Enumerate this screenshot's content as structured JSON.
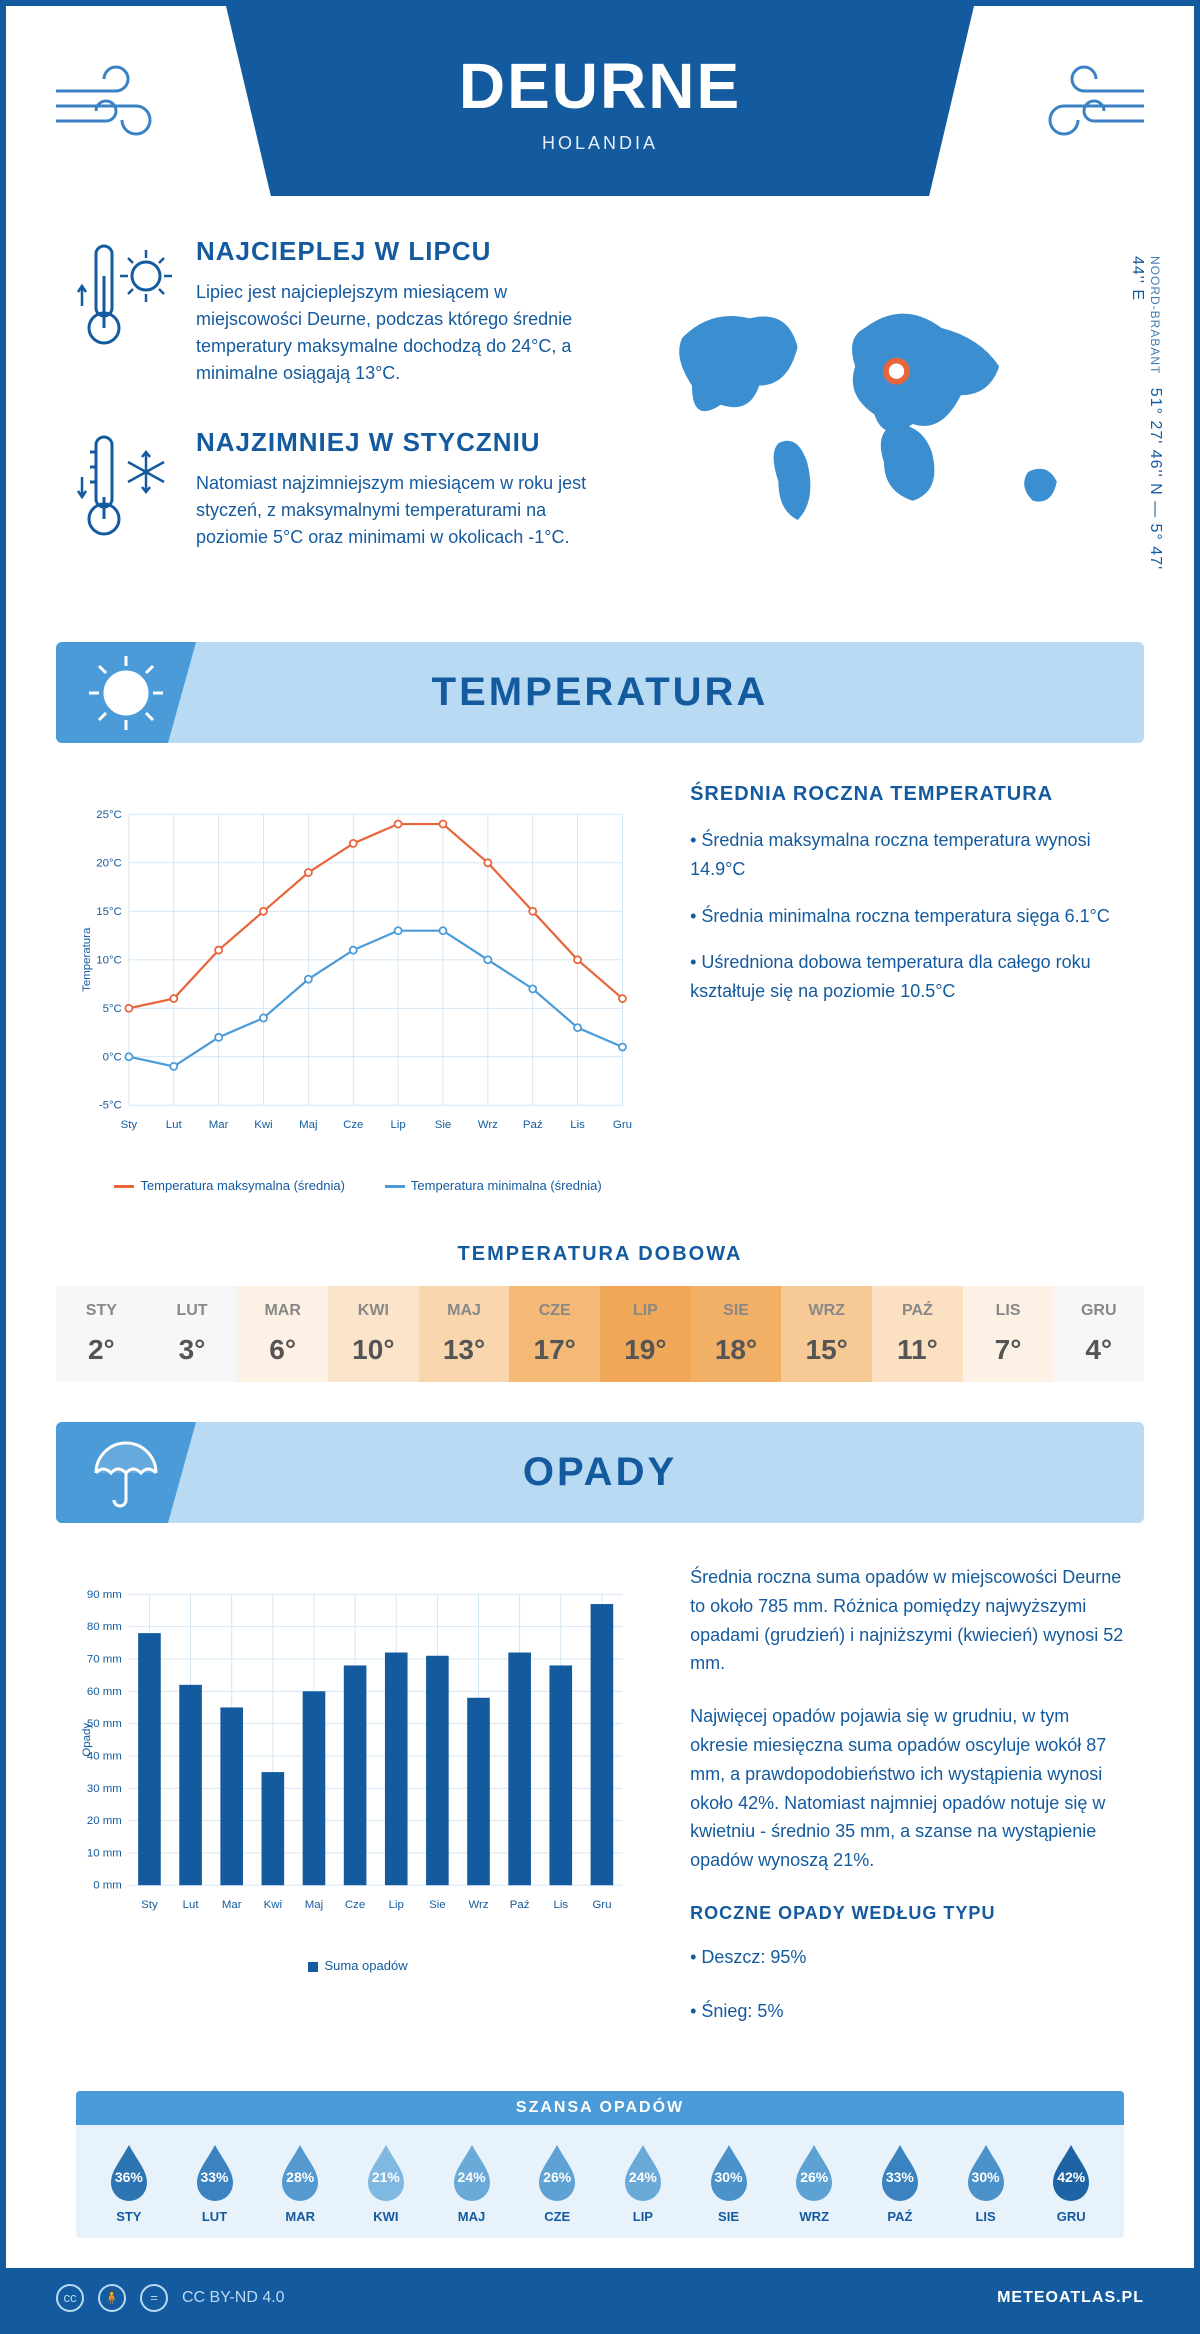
{
  "header": {
    "city": "DEURNE",
    "country": "HOLANDIA"
  },
  "coords": {
    "region": "NOORD-BRABANT",
    "value": "51° 27' 46'' N — 5° 47' 44'' E"
  },
  "intro": {
    "warm": {
      "title": "NAJCIEPLEJ W LIPCU",
      "text": "Lipiec jest najcieplejszym miesiącem w miejscowości Deurne, podczas którego średnie temperatury maksymalne dochodzą do 24°C, a minimalne osiągają 13°C."
    },
    "cold": {
      "title": "NAJZIMNIEJ W STYCZNIU",
      "text": "Natomiast najzimniejszym miesiącem w roku jest styczeń, z maksymalnymi temperaturami na poziomie 5°C oraz minimami w okolicach -1°C."
    }
  },
  "temperature": {
    "banner": "TEMPERATURA",
    "summary_title": "ŚREDNIA ROCZNA TEMPERATURA",
    "summary": [
      "• Średnia maksymalna roczna temperatura wynosi 14.9°C",
      "• Średnia minimalna roczna temperatura sięga 6.1°C",
      "• Uśredniona dobowa temperatura dla całego roku kształtuje się na poziomie 10.5°C"
    ],
    "chart": {
      "type": "line",
      "months": [
        "Sty",
        "Lut",
        "Mar",
        "Kwi",
        "Maj",
        "Cze",
        "Lip",
        "Sie",
        "Wrz",
        "Paź",
        "Lis",
        "Gru"
      ],
      "series": [
        {
          "name": "Temperatura maksymalna (średnia)",
          "color": "#e8653b",
          "values": [
            5,
            6,
            11,
            15,
            19,
            22,
            24,
            24,
            20,
            15,
            10,
            6
          ]
        },
        {
          "name": "Temperatura minimalna (średnia)",
          "color": "#4a9bd8",
          "values": [
            0,
            -1,
            2,
            4,
            8,
            11,
            13,
            13,
            10,
            7,
            3,
            1
          ]
        }
      ],
      "ylabel": "Temperatura",
      "ymin": -5,
      "ymax": 25,
      "ystep": 5,
      "grid_color": "#cfe4f3",
      "background_color": "#ffffff"
    },
    "daily": {
      "title": "TEMPERATURA DOBOWA",
      "months": [
        "STY",
        "LUT",
        "MAR",
        "KWI",
        "MAJ",
        "CZE",
        "LIP",
        "SIE",
        "WRZ",
        "PAŹ",
        "LIS",
        "GRU"
      ],
      "values": [
        "2°",
        "3°",
        "6°",
        "10°",
        "13°",
        "17°",
        "19°",
        "18°",
        "15°",
        "11°",
        "7°",
        "4°"
      ],
      "colors": [
        "#f7f7f7",
        "#f7f7f7",
        "#fdf1e5",
        "#fce4ca",
        "#f9d6ae",
        "#f4b877",
        "#f0a858",
        "#f2af66",
        "#f7ca95",
        "#fbe0c2",
        "#fdf1e5",
        "#f7f7f7"
      ]
    }
  },
  "precip": {
    "banner": "OPADY",
    "text": [
      "Średnia roczna suma opadów w miejscowości Deurne to około 785 mm. Różnica pomiędzy najwyższymi opadami (grudzień) i najniższymi (kwiecień) wynosi 52 mm.",
      "Najwięcej opadów pojawia się w grudniu, w tym okresie miesięczna suma opadów oscyluje wokół 87 mm, a prawdopodobieństwo ich wystąpienia wynosi około 42%. Natomiast najmniej opadów notuje się w kwietniu - średnio 35 mm, a szanse na wystąpienie opadów wynoszą 21%."
    ],
    "chart": {
      "type": "bar",
      "months": [
        "Sty",
        "Lut",
        "Mar",
        "Kwi",
        "Maj",
        "Cze",
        "Lip",
        "Sie",
        "Wrz",
        "Paź",
        "Lis",
        "Gru"
      ],
      "values": [
        78,
        62,
        55,
        35,
        60,
        68,
        72,
        71,
        58,
        72,
        68,
        87
      ],
      "bar_color": "#145a9e",
      "ylabel": "Opady",
      "ymin": 0,
      "ymax": 90,
      "ystep": 10,
      "grid_color": "#cfe4f3",
      "legend": "Suma opadów"
    },
    "chance": {
      "title": "SZANSA OPADÓW",
      "months": [
        "STY",
        "LUT",
        "MAR",
        "KWI",
        "MAJ",
        "CZE",
        "LIP",
        "SIE",
        "WRZ",
        "PAŹ",
        "LIS",
        "GRU"
      ],
      "values": [
        "36%",
        "33%",
        "28%",
        "21%",
        "24%",
        "26%",
        "24%",
        "30%",
        "26%",
        "33%",
        "30%",
        "42%"
      ],
      "colors": [
        "#2d74b3",
        "#3a82c0",
        "#5499cf",
        "#7fb8e0",
        "#6aaad8",
        "#5da2d3",
        "#6aaad8",
        "#4a92c9",
        "#5da2d3",
        "#3a82c0",
        "#4a92c9",
        "#1e63a3"
      ]
    },
    "types": {
      "title": "ROCZNE OPADY WEDŁUG TYPU",
      "items": [
        "• Deszcz: 95%",
        "• Śnieg: 5%"
      ]
    }
  },
  "footer": {
    "license": "CC BY-ND 4.0",
    "site": "METEOATLAS.PL"
  }
}
